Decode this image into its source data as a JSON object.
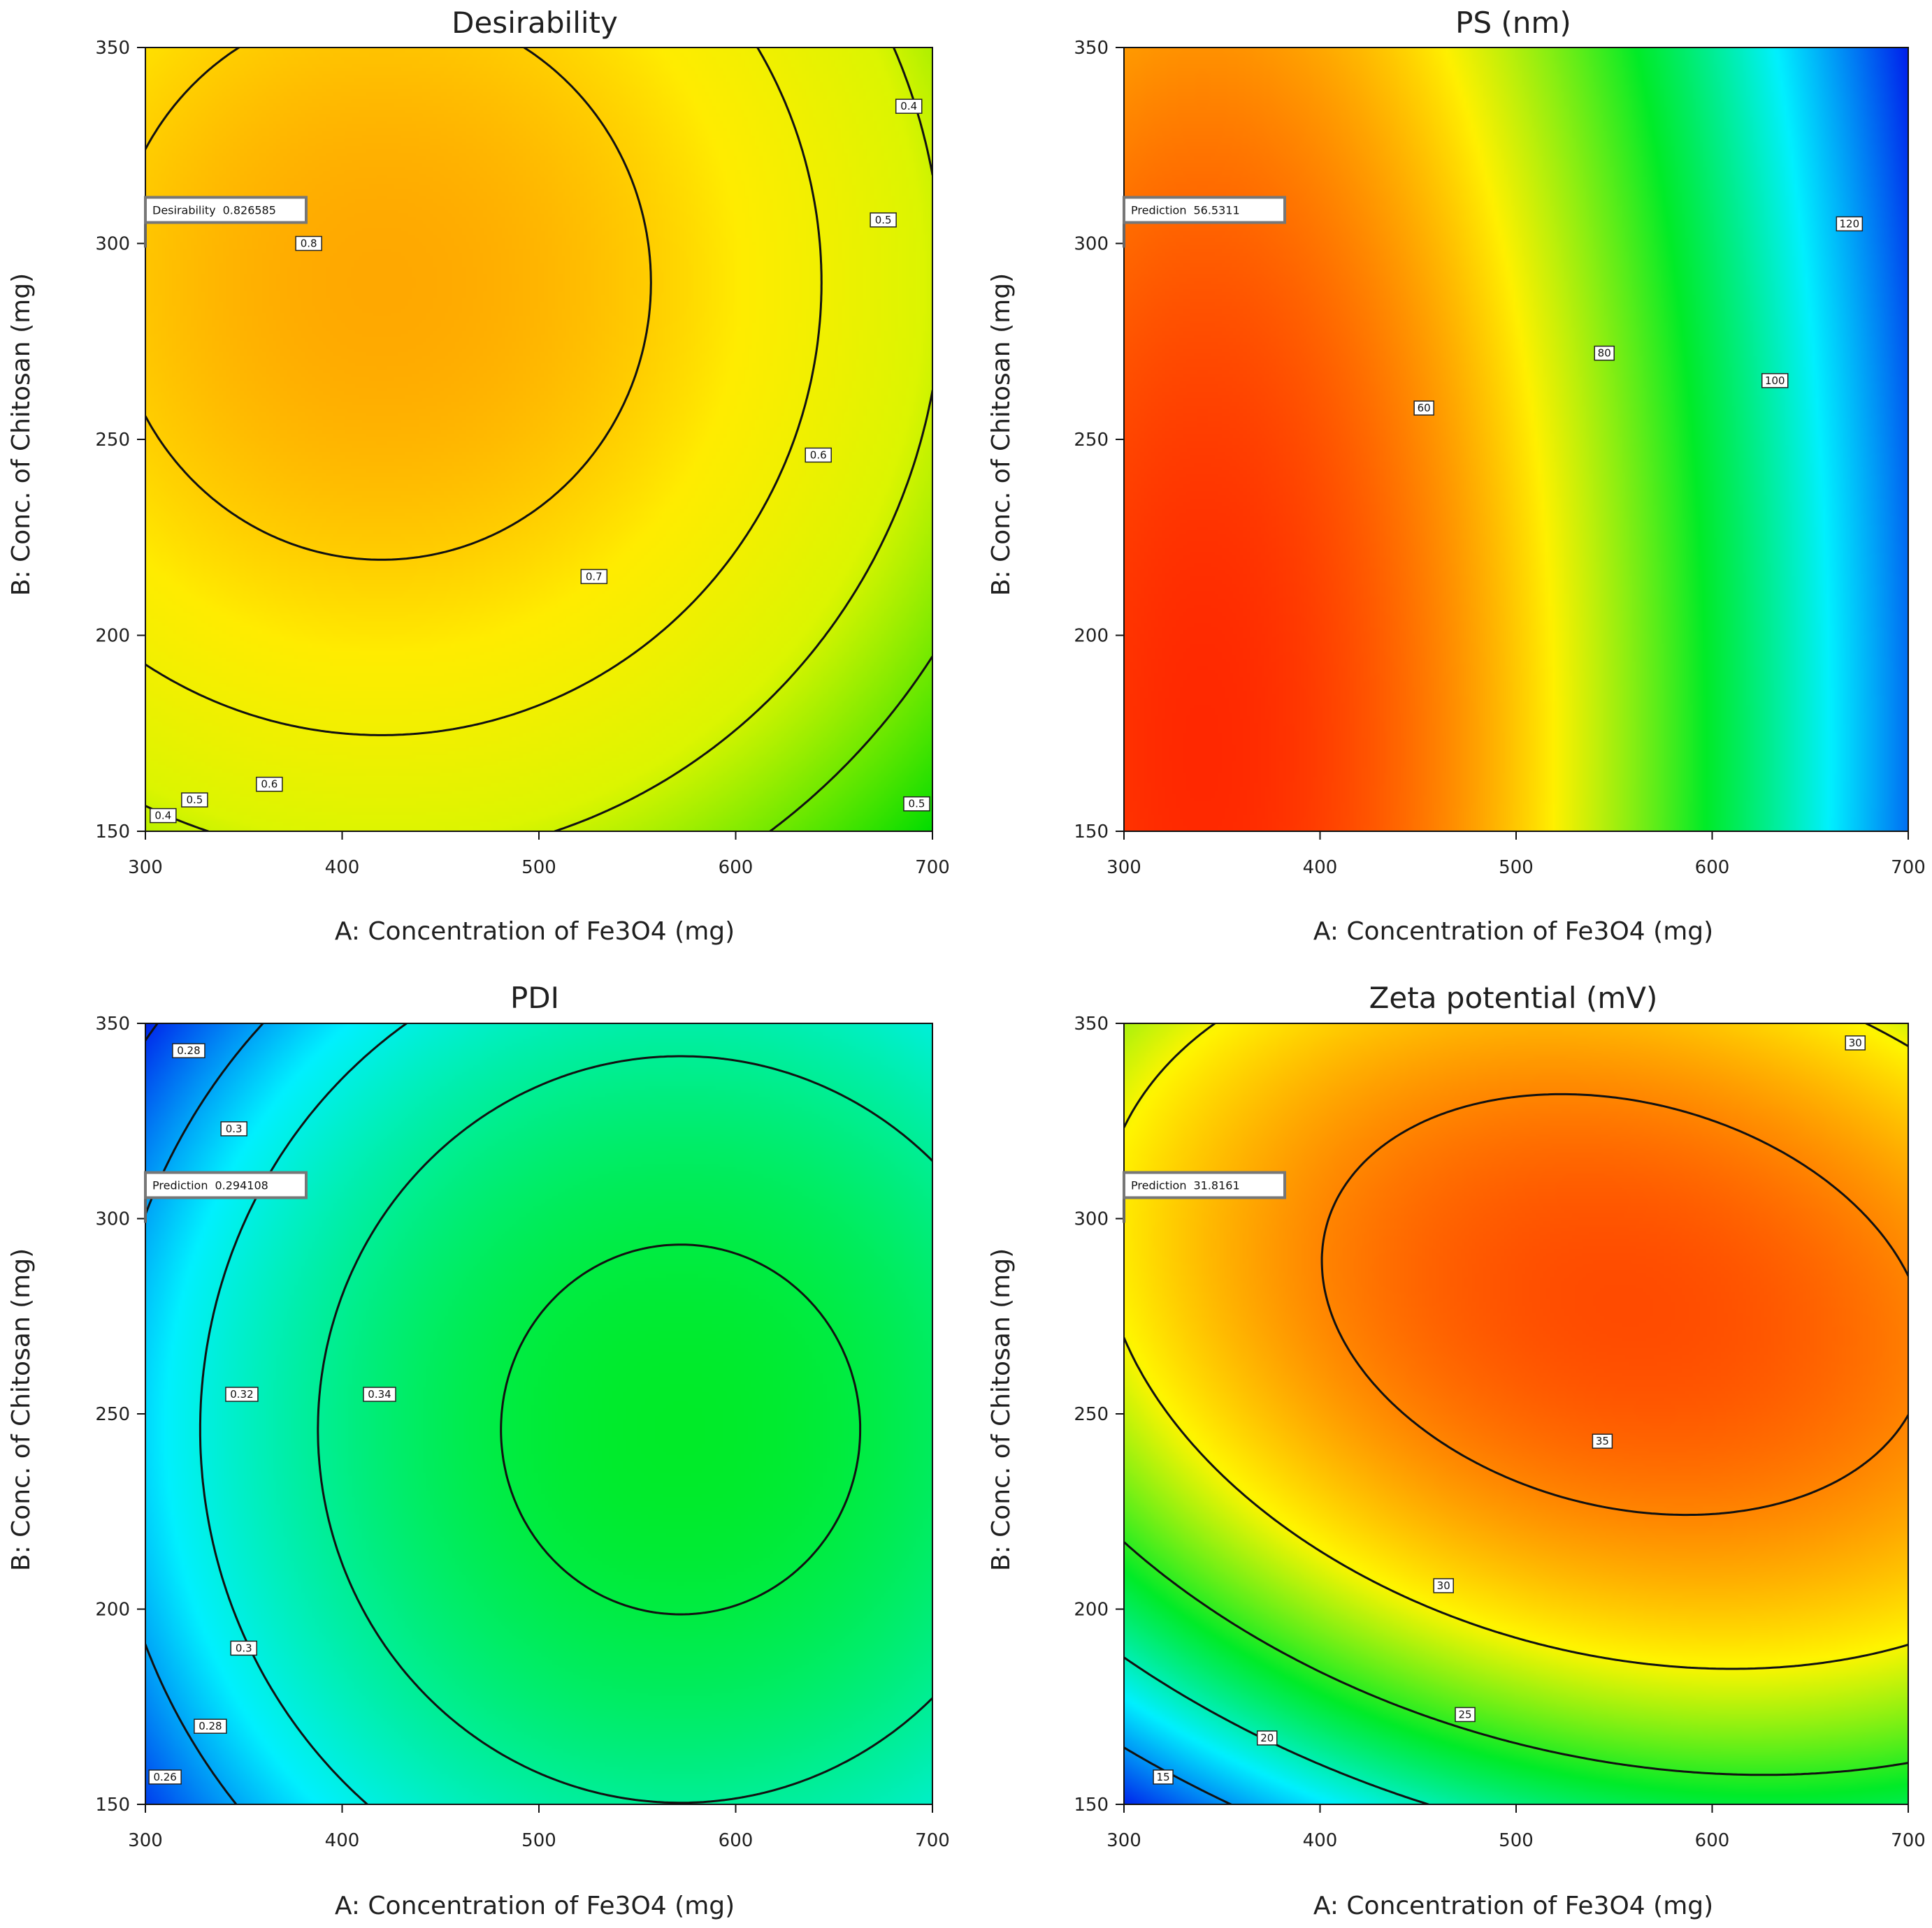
{
  "chart_data": [
    {
      "type": "contour",
      "title": "Desirability",
      "xlabel": "A: Concentration of Fe3O4  (mg)",
      "ylabel": "B: Conc. of Chitosan (mg)",
      "xlim": [
        300,
        700
      ],
      "ylim": [
        150,
        350
      ],
      "xticks": [
        "300",
        "400",
        "500",
        "600",
        "700"
      ],
      "yticks": [
        "150",
        "200",
        "250",
        "300",
        "350"
      ],
      "colormap": "green-yellow-orange",
      "model": {
        "c": 0.76,
        "cx": 420,
        "cy": 290,
        "ax": 3.2e-06,
        "ay": 1.2e-05,
        "axy": 0
      },
      "contour_levels": [
        0.4,
        0.5,
        0.6,
        0.7,
        0.8
      ],
      "contour_labels": [
        {
          "text": "0.8",
          "x": 383,
          "y": 300
        },
        {
          "text": "0.7",
          "x": 528,
          "y": 215
        },
        {
          "text": "0.6",
          "x": 642,
          "y": 246
        },
        {
          "text": "0.5",
          "x": 675,
          "y": 306
        },
        {
          "text": "0.4",
          "x": 688,
          "y": 335
        },
        {
          "text": "0.6",
          "x": 363,
          "y": 162
        },
        {
          "text": "0.5",
          "x": 325,
          "y": 158
        },
        {
          "text": "0.4",
          "x": 309,
          "y": 154
        },
        {
          "text": "0.5",
          "x": 692,
          "y": 157
        }
      ],
      "flag": {
        "label": "Desirability",
        "value": "0.826585",
        "x": 300,
        "y": 300
      }
    },
    {
      "type": "contour",
      "title": "PS (nm)",
      "xlabel": "A: Concentration of Fe3O4  (mg)",
      "ylabel": "B: Conc. of Chitosan (mg)",
      "xlim": [
        300,
        700
      ],
      "ylim": [
        150,
        350
      ],
      "xticks": [
        "300",
        "400",
        "500",
        "600",
        "700"
      ],
      "yticks": [
        "150",
        "200",
        "250",
        "300",
        "350"
      ],
      "colormap": "blue-cyan-green-yellow-red",
      "model": {
        "c": 50,
        "cx": 340,
        "cy": 170,
        "ax": 0.00042,
        "ay": 0.00022,
        "axy": 0
      },
      "contour_levels": [
        60,
        80,
        100,
        120
      ],
      "contour_labels": [
        {
          "text": "60",
          "x": 453,
          "y": 258
        },
        {
          "text": "80",
          "x": 545,
          "y": 272
        },
        {
          "text": "100",
          "x": 632,
          "y": 265
        },
        {
          "text": "120",
          "x": 670,
          "y": 305
        }
      ],
      "flag": {
        "label": "Prediction",
        "value": "56.5311",
        "x": 300,
        "y": 300
      }
    },
    {
      "type": "contour",
      "title": "PDI",
      "xlabel": "A: Concentration of Fe3O4  (mg)",
      "ylabel": "B: Conc. of Chitosan (mg)",
      "xlim": [
        300,
        700
      ],
      "ylim": [
        150,
        350
      ],
      "xticks": [
        "300",
        "400",
        "500",
        "600",
        "700"
      ],
      "yticks": [
        "150",
        "200",
        "250",
        "300",
        "350"
      ],
      "colormap": "blue-cyan-green",
      "model": {
        "c": 0.3465,
        "cx": 572,
        "cy": 246,
        "ax": 7.8e-07,
        "ay": 2.9e-06,
        "axy": 0
      },
      "contour_levels": [
        0.26,
        0.28,
        0.3,
        0.32,
        0.34
      ],
      "contour_labels": [
        {
          "text": "0.28",
          "x": 322,
          "y": 343
        },
        {
          "text": "0.3",
          "x": 345,
          "y": 323
        },
        {
          "text": "0.32",
          "x": 349,
          "y": 255
        },
        {
          "text": "0.34",
          "x": 419,
          "y": 255
        },
        {
          "text": "0.3",
          "x": 350,
          "y": 190
        },
        {
          "text": "0.28",
          "x": 333,
          "y": 170
        },
        {
          "text": "0.26",
          "x": 310,
          "y": 157
        }
      ],
      "flag": {
        "label": "Prediction",
        "value": "0.294108",
        "x": 300,
        "y": 300
      }
    },
    {
      "type": "contour",
      "title": "Zeta potential (mV)",
      "xlabel": "A: Concentration of Fe3O4  (mg)",
      "ylabel": "B: Conc. of Chitosan (mg)",
      "xlim": [
        300,
        700
      ],
      "ylim": [
        150,
        350
      ],
      "xticks": [
        "300",
        "400",
        "500",
        "600",
        "700"
      ],
      "yticks": [
        "150",
        "200",
        "250",
        "300",
        "350"
      ],
      "colormap": "blue-cyan-green-yellow-orange",
      "model": {
        "c": 37.5,
        "cx": 555,
        "cy": 278,
        "ax": 0.00011,
        "ay": 0.0009,
        "axy": 0.00013
      },
      "contour_levels": [
        15,
        20,
        25,
        30,
        35
      ],
      "contour_labels": [
        {
          "text": "35",
          "x": 544,
          "y": 243
        },
        {
          "text": "30",
          "x": 463,
          "y": 206
        },
        {
          "text": "25",
          "x": 474,
          "y": 173
        },
        {
          "text": "20",
          "x": 373,
          "y": 167
        },
        {
          "text": "15",
          "x": 320,
          "y": 157
        },
        {
          "text": "30",
          "x": 673,
          "y": 345
        }
      ],
      "flag": {
        "label": "Prediction",
        "value": "31.8161",
        "x": 300,
        "y": 300
      }
    }
  ]
}
